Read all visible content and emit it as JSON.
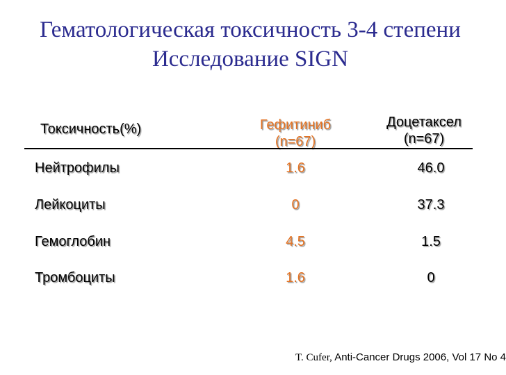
{
  "title": {
    "line1": "Гематологическая токсичность 3-4 степени",
    "line2": "Исследование SIGN"
  },
  "table": {
    "headers": {
      "toxicity": "Токсичность(%)",
      "gefitinib_name": "Гефитиниб",
      "gefitinib_n": "(n=67)",
      "docetaxel_name": "Доцетаксел",
      "docetaxel_n": "(n=67)"
    },
    "rows": [
      {
        "name": "Нейтрофилы",
        "gefitinib": "1.6",
        "docetaxel": "46.0"
      },
      {
        "name": "Лейкоциты",
        "gefitinib": "0",
        "docetaxel": "37.3"
      },
      {
        "name": "Гемоглобин",
        "gefitinib": "4.5",
        "docetaxel": "1.5"
      },
      {
        "name": "Тромбоциты",
        "gefitinib": "1.6",
        "docetaxel": "0"
      }
    ]
  },
  "citation": {
    "author": "T. Cufer,",
    "source": " Anti-Cancer Drugs 2006, Vol 17 No 4"
  },
  "colors": {
    "title": "#2b2b8f",
    "gefitinib": "#e37222",
    "text": "#000000"
  }
}
